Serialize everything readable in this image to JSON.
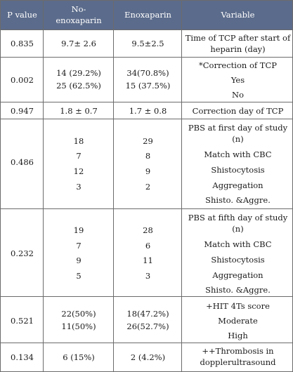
{
  "header": {
    "p_value": "P value",
    "no_enox_line1": "No-",
    "no_enox_line2": "enoxaparin",
    "enox": "Enoxaparin",
    "variable": "Variable"
  },
  "rows": [
    {
      "p": "0.835",
      "no_enox": [
        "9.7± 2.6"
      ],
      "enox": [
        "9.5±2.5"
      ],
      "variable": [
        "Time of TCP after start of",
        "heparin (day)"
      ]
    },
    {
      "p": "0.002",
      "no_enox": [
        "14 (29.2%)",
        "25 (62.5%)"
      ],
      "enox": [
        "34(70.8%)",
        "15 (37.5%)"
      ],
      "variable": [
        "*Correction of TCP",
        "Yes",
        "No"
      ]
    },
    {
      "p": "0.947",
      "no_enox": [
        "1.8 ± 0.7"
      ],
      "enox": [
        "1.7 ± 0.8"
      ],
      "variable": [
        "Correction day of TCP"
      ]
    },
    {
      "p": "0.486",
      "no_enox": [
        "18",
        "7",
        "12",
        "3"
      ],
      "enox": [
        "29",
        "8",
        "9",
        "2"
      ],
      "variable": [
        "PBS at first day of study",
        "(n)",
        "Match with CBC",
        "Shistocytosis",
        "Aggregation",
        "Shisto. &Aggre."
      ]
    },
    {
      "p": "0.232",
      "no_enox": [
        "19",
        "7",
        "9",
        "5"
      ],
      "enox": [
        "28",
        "6",
        "11",
        "3"
      ],
      "variable": [
        "PBS at fifth day of study",
        "(n)",
        "Match with CBC",
        "Shistocytosis",
        "Aggregation",
        "Shisto. &Aggre."
      ]
    },
    {
      "p": "0.521",
      "no_enox": [
        "22(50%)",
        "11(50%)"
      ],
      "enox": [
        "18(47.2%)",
        "26(52.7%)"
      ],
      "variable": [
        "+HIT 4Ts score",
        "Moderate",
        "High"
      ]
    },
    {
      "p": "0.134",
      "no_enox": [
        "6 (15%)"
      ],
      "enox": [
        "2 (4.2%)"
      ],
      "variable": [
        "++Thrombosis in",
        "dopplerultrasound"
      ]
    }
  ],
  "colors": {
    "header_bg": "#5b6b8b",
    "header_text": "#ffffff",
    "border": "#6b6b6b",
    "text": "#1a1a1a"
  }
}
